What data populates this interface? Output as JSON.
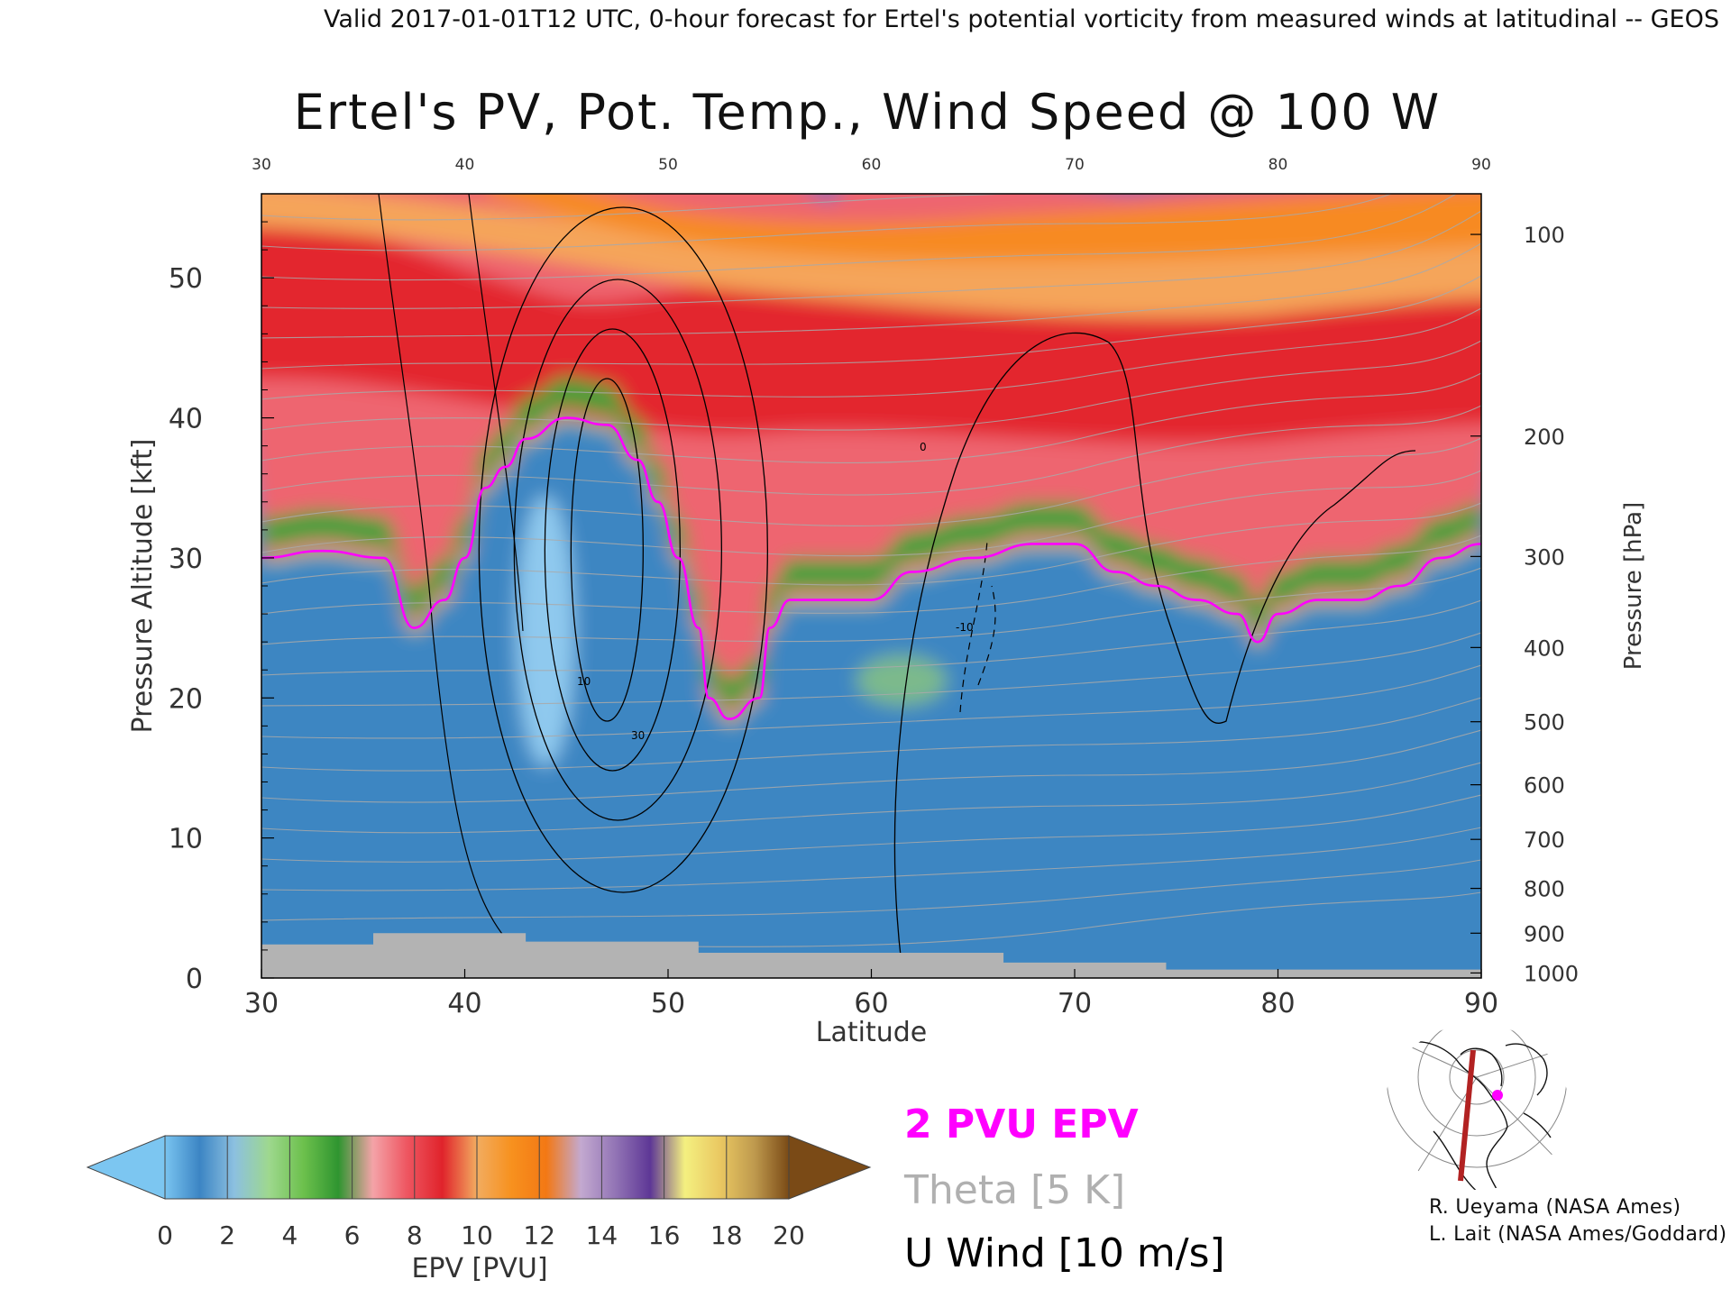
{
  "header": {
    "valid_line": "Valid 2017-01-01T12 UTC, 0-hour forecast for Ertel's potential vorticity from measured winds at latitudinal -- GEOS",
    "title": "Ertel's PV, Pot. Temp., Wind Speed @ 100 W"
  },
  "chart_data": {
    "type": "heatmap",
    "title": "Ertel's PV, Pot. Temp., Wind Speed @ 100 W",
    "xlabel": "Latitude",
    "ylabel": "Pressure Altitude [kft]",
    "y2label": "Pressure [hPa]",
    "xlim": [
      30,
      90
    ],
    "ylim": [
      0,
      56
    ],
    "x_ticks": [
      30,
      40,
      50,
      60,
      70,
      80,
      90
    ],
    "y_ticks": [
      0,
      10,
      20,
      30,
      40,
      50
    ],
    "pressure_ticks": [
      {
        "hpa": "100",
        "kft": 53.1
      },
      {
        "hpa": "200",
        "kft": 38.7
      },
      {
        "hpa": "300",
        "kft": 30.1
      },
      {
        "hpa": "400",
        "kft": 23.6
      },
      {
        "hpa": "500",
        "kft": 18.3
      },
      {
        "hpa": "600",
        "kft": 13.8
      },
      {
        "hpa": "700",
        "kft": 9.9
      },
      {
        "hpa": "800",
        "kft": 6.4
      },
      {
        "hpa": "900",
        "kft": 3.2
      },
      {
        "hpa": "1000",
        "kft": 0.36
      }
    ],
    "tropopause_2pvu_kft": [
      [
        30,
        30
      ],
      [
        33,
        30.5
      ],
      [
        36,
        30
      ],
      [
        37.5,
        25
      ],
      [
        39,
        27
      ],
      [
        40,
        30
      ],
      [
        41,
        35
      ],
      [
        42,
        36.5
      ],
      [
        43,
        38.5
      ],
      [
        45,
        40
      ],
      [
        47,
        39.5
      ],
      [
        48.5,
        37
      ],
      [
        49.5,
        34
      ],
      [
        50.5,
        30
      ],
      [
        51.5,
        25
      ],
      [
        52,
        20
      ],
      [
        53,
        18.5
      ],
      [
        54.5,
        20
      ],
      [
        55,
        25
      ],
      [
        56,
        27
      ],
      [
        58,
        27
      ],
      [
        60,
        27
      ],
      [
        62,
        29
      ],
      [
        65,
        30
      ],
      [
        68,
        31
      ],
      [
        70,
        31
      ],
      [
        72,
        29
      ],
      [
        74,
        28
      ],
      [
        76,
        27
      ],
      [
        78,
        26
      ],
      [
        79,
        24
      ],
      [
        80,
        26
      ],
      [
        82,
        27
      ],
      [
        84,
        27
      ],
      [
        86,
        28
      ],
      [
        88,
        30
      ],
      [
        90,
        31
      ]
    ],
    "u_wind_jet_core": {
      "lat": 47,
      "kft": 28,
      "label": "30"
    },
    "contour_labels": [
      "0",
      "10",
      "30",
      "-10"
    ],
    "colorbar": {
      "label": "EPV [PVU]",
      "ticks": [
        0,
        2,
        4,
        6,
        8,
        10,
        12,
        14,
        16,
        18,
        20
      ],
      "colors": [
        "#79C4F0",
        "#3C85C4",
        "#8CC0E0",
        "#9ED88E",
        "#6CC04C",
        "#2F9530",
        "#F4A3A8",
        "#EE5560",
        "#E0232B",
        "#F2AC60",
        "#F7911E",
        "#F37814",
        "#C3A9D0",
        "#9274B5",
        "#5E3796",
        "#F4F080",
        "#EAC862",
        "#BF9A4E",
        "#7A4A16"
      ],
      "under_color": "#7CC6F1",
      "over_color": "#7A4A16"
    },
    "legend": {
      "epv_line": "2 PVU EPV",
      "theta": "Theta [5 K]",
      "uwind": "U Wind [10 m/s]",
      "epv_color": "#FF00FF",
      "theta_color": "#B0B0B0",
      "uwind_color": "#000000"
    }
  },
  "credits": {
    "line1": "R. Ueyama (NASA Ames)",
    "line2": "L. Lait (NASA Ames/Goddard)"
  },
  "map_inset": {
    "section_color": "#B22222",
    "marker_color": "#FF00FF"
  }
}
